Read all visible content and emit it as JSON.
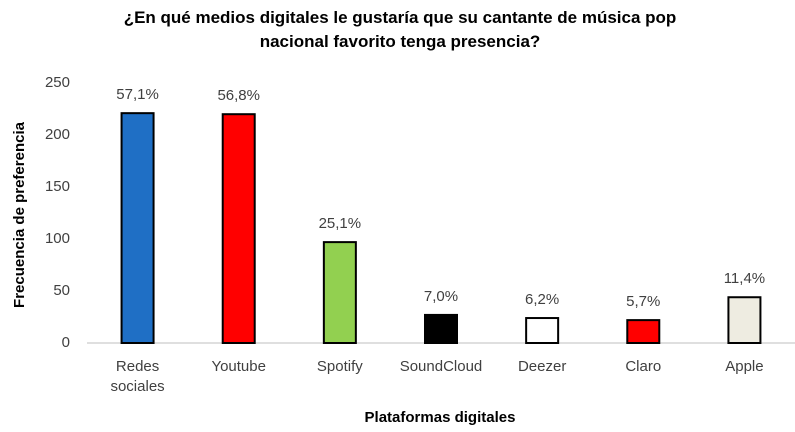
{
  "chart_data": {
    "type": "bar",
    "title": "¿En qué medios digitales le gustaría que su cantante de música pop nacional favorito tenga presencia?",
    "x_label": "Plataformas digitales",
    "y_label": "Frecuencia de preferencia",
    "categories": [
      "Redes sociales",
      "Youtube",
      "Spotify",
      "SoundCloud",
      "Deezer",
      "Claro",
      "Apple"
    ],
    "values": [
      221,
      220,
      97,
      27,
      24,
      22,
      44
    ],
    "percent_labels": [
      "57,1%",
      "56,8%",
      "25,1%",
      "7,0%",
      "6,2%",
      "5,7%",
      "11,4%"
    ],
    "colors": [
      "#1f6fc5",
      "#ff0000",
      "#92d050",
      "#000000",
      "#ffffff",
      "#ff0000",
      "#eeece1"
    ],
    "ylim": [
      0,
      250
    ],
    "yticks": [
      0,
      50,
      100,
      150,
      200,
      250
    ],
    "grid": false
  }
}
